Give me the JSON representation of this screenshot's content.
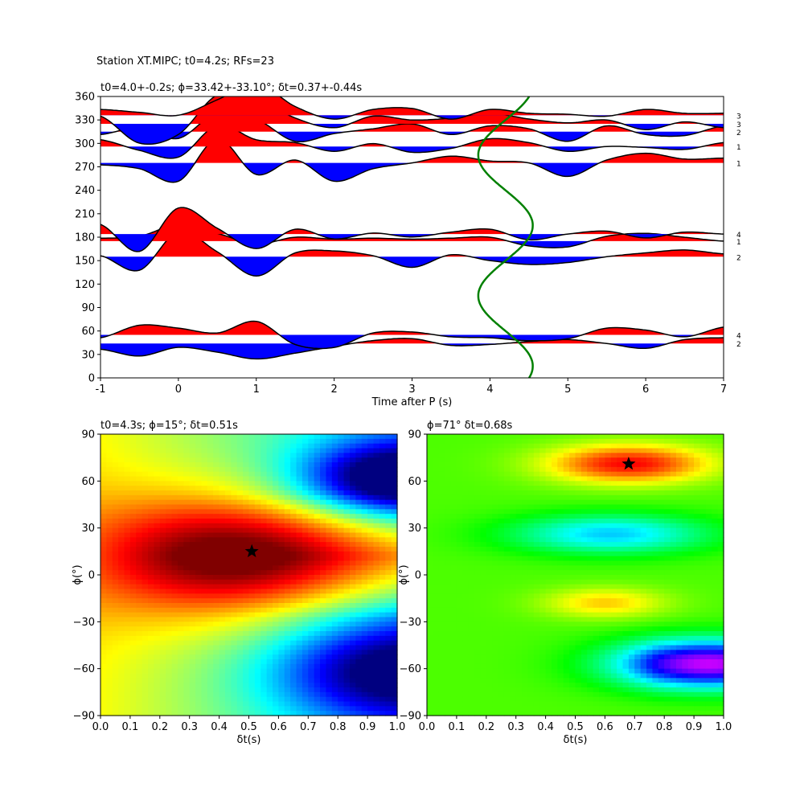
{
  "figure": {
    "suptitle": "Station XT.MIPC; t0=4.2s; RFs=23"
  },
  "chart_data": [
    {
      "type": "line",
      "panel": "receiver-functions",
      "title": "t0=4.0+-0.2s; ϕ=33.42+-33.10°; δt=0.37+-0.44s",
      "xlabel": "Time after P (s)",
      "ylabel": "",
      "xlim": [
        -1,
        7
      ],
      "ylim": [
        0,
        360
      ],
      "xticks": [
        -1,
        0,
        1,
        2,
        3,
        4,
        5,
        6,
        7
      ],
      "yticks": [
        0,
        30,
        60,
        90,
        120,
        150,
        180,
        210,
        240,
        270,
        300,
        330,
        360
      ],
      "fill_positive": "#ff0000",
      "fill_negative": "#0000ff",
      "fit_curve_color": "#008000",
      "traces": [
        {
          "baz": 44,
          "count": "2",
          "amp": [
            -0.6,
            -1.3,
            -0.4,
            -0.9,
            -1.6,
            -1.0,
            -0.3,
            0.3,
            0.5,
            -0.2,
            -0.1,
            0.2,
            0.4,
            0.0,
            -0.5,
            0.4,
            0.6
          ]
        },
        {
          "baz": 55,
          "count": "4",
          "amp": [
            -0.3,
            1.0,
            0.7,
            0.2,
            1.4,
            -1.0,
            -1.3,
            0.2,
            0.3,
            -0.2,
            -0.3,
            -0.6,
            -0.4,
            0.7,
            0.5,
            -0.2,
            0.8
          ]
        },
        {
          "baz": 155,
          "count": "2",
          "amp": [
            0.1,
            -1.4,
            2.6,
            0.5,
            -2.0,
            0.4,
            0.6,
            0.1,
            -1.1,
            0.2,
            -0.4,
            -0.8,
            -0.6,
            0.0,
            0.4,
            0.7,
            0.3
          ]
        },
        {
          "baz": 175,
          "count": "1",
          "amp": [
            0.3,
            0.5,
            1.7,
            0.8,
            -0.3,
            0.4,
            0.2,
            0.3,
            0.2,
            0.3,
            0.4,
            -0.5,
            -0.6,
            0.5,
            0.8,
            0.4,
            0.0
          ]
        },
        {
          "baz": 184,
          "count": "4",
          "amp": [
            1.0,
            -1.8,
            2.7,
            0.6,
            -1.5,
            0.5,
            -0.5,
            0.1,
            -0.3,
            0.2,
            0.5,
            -0.6,
            0.0,
            0.3,
            -0.4,
            0.2,
            0.0
          ]
        },
        {
          "baz": 275,
          "count": "1",
          "amp": [
            -0.2,
            -0.6,
            -1.9,
            2.5,
            -1.2,
            0.3,
            -1.9,
            -0.6,
            0.0,
            0.7,
            0.2,
            0.0,
            -1.4,
            0.3,
            1.0,
            0.4,
            0.5
          ]
        },
        {
          "baz": 296,
          "count": "1",
          "amp": [
            0.7,
            -0.4,
            -1.1,
            2.2,
            0.7,
            0.4,
            -0.5,
            0.3,
            -0.6,
            -0.2,
            0.8,
            0.4,
            -0.5,
            0.0,
            -0.1,
            -0.3,
            0.4
          ]
        },
        {
          "baz": 315,
          "count": "2",
          "amp": [
            -0.3,
            0.4,
            -0.7,
            2.0,
            1.3,
            -1.0,
            -0.2,
            0.3,
            0.8,
            -0.3,
            0.6,
            0.3,
            -1.0,
            0.6,
            -0.3,
            -0.4,
            0.6
          ]
        },
        {
          "baz": 325,
          "count": "3",
          "amp": [
            0.8,
            -2.0,
            -1.1,
            3.0,
            2.6,
            0.6,
            -0.4,
            0.8,
            0.4,
            0.6,
            1.1,
            0.5,
            0.1,
            0.4,
            -0.6,
            0.2,
            -0.4
          ]
        },
        {
          "baz": 336,
          "count": "3",
          "amp": [
            0.6,
            0.3,
            0.0,
            1.6,
            3.3,
            0.9,
            -0.4,
            0.6,
            0.7,
            -0.4,
            0.6,
            0.2,
            0.1,
            -0.1,
            0.6,
            0.2,
            0.2
          ]
        }
      ],
      "fit_curve": {
        "center": 4.2,
        "amplitude": 0.35,
        "period_deg": 180,
        "phase_deg": 15
      }
    },
    {
      "type": "heatmap",
      "panel": "grid-search-left",
      "title": "t0=4.3s; ϕ=15°; δt=0.51s",
      "xlabel": "δt(s)",
      "ylabel": "ϕ(°)",
      "xlim": [
        0.0,
        1.0
      ],
      "ylim": [
        -90,
        90
      ],
      "xticks": [
        "0.0",
        "0.1",
        "0.2",
        "0.3",
        "0.4",
        "0.5",
        "0.6",
        "0.7",
        "0.8",
        "0.9",
        "1.0"
      ],
      "yticks": [
        -90,
        -60,
        -30,
        0,
        30,
        60,
        90
      ],
      "colormap": "jet",
      "best": {
        "dt": 0.51,
        "phi": 15
      }
    },
    {
      "type": "heatmap",
      "panel": "grid-search-right",
      "title": "ϕ=71° δt=0.68s",
      "xlabel": "δt(s)",
      "ylabel": "ϕ(°)",
      "xlim": [
        0.0,
        1.0
      ],
      "ylim": [
        -90,
        90
      ],
      "xticks": [
        "0.0",
        "0.1",
        "0.2",
        "0.3",
        "0.4",
        "0.5",
        "0.6",
        "0.7",
        "0.8",
        "0.9",
        "1.0"
      ],
      "yticks": [
        -90,
        -60,
        -30,
        0,
        30,
        60,
        90
      ],
      "colormap": "hsv",
      "best": {
        "dt": 0.68,
        "phi": 71
      }
    }
  ]
}
